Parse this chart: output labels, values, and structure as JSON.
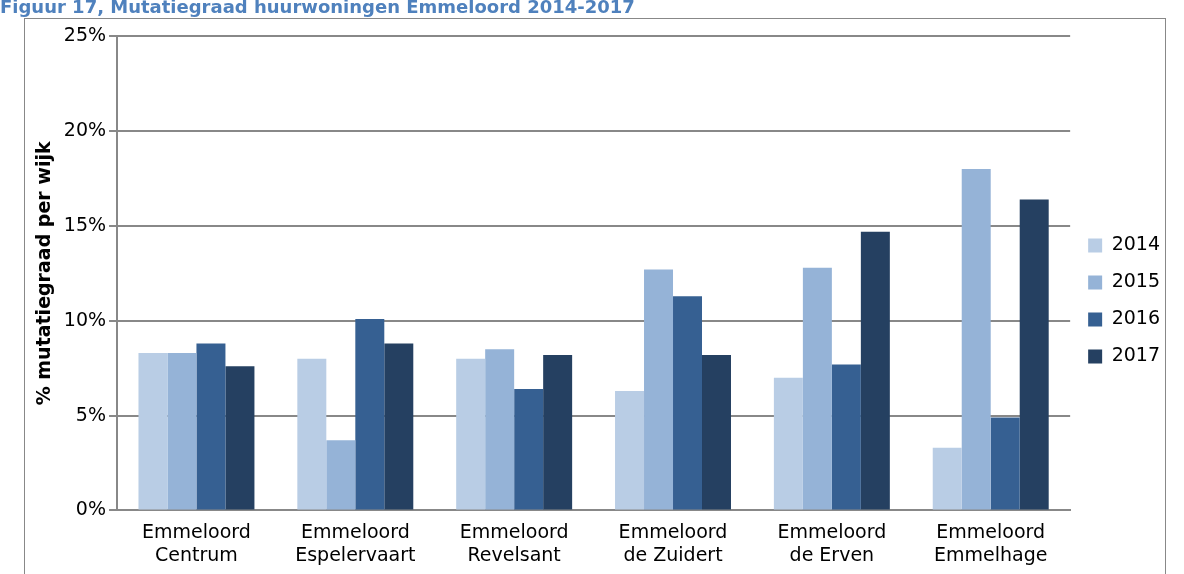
{
  "chart_data": {
    "type": "bar",
    "title": "Figuur 17, Mutatiegraad huurwoningen Emmeloord 2014-2017",
    "ylabel": "% mutatiegraad per wijk",
    "categories": [
      "Emmeloord Centrum",
      "Emmeloord Espelervaart",
      "Emmeloord Revelsant",
      "Emmeloord de Zuidert",
      "Emmeloord de Erven",
      "Emmeloord Emmelhage"
    ],
    "series": [
      {
        "name": "2014",
        "color": "#b9cde5",
        "values": [
          8.3,
          8.0,
          8.0,
          6.3,
          7.0,
          3.3
        ]
      },
      {
        "name": "2015",
        "color": "#95b3d7",
        "values": [
          8.3,
          3.7,
          8.5,
          12.7,
          12.8,
          18.0
        ]
      },
      {
        "name": "2016",
        "color": "#366092",
        "values": [
          8.8,
          10.1,
          6.4,
          11.3,
          7.7,
          4.9
        ]
      },
      {
        "name": "2017",
        "color": "#254061",
        "values": [
          7.6,
          8.8,
          8.2,
          8.2,
          14.7,
          16.4
        ]
      }
    ],
    "ylim": [
      0,
      25
    ],
    "yticks": [
      {
        "value": 0,
        "label": "0%"
      },
      {
        "value": 5,
        "label": "5%"
      },
      {
        "value": 10,
        "label": "10%"
      },
      {
        "value": 15,
        "label": "15%"
      },
      {
        "value": 20,
        "label": "20%"
      },
      {
        "value": 25,
        "label": "25%"
      }
    ],
    "grid": "y",
    "legend": "right"
  }
}
